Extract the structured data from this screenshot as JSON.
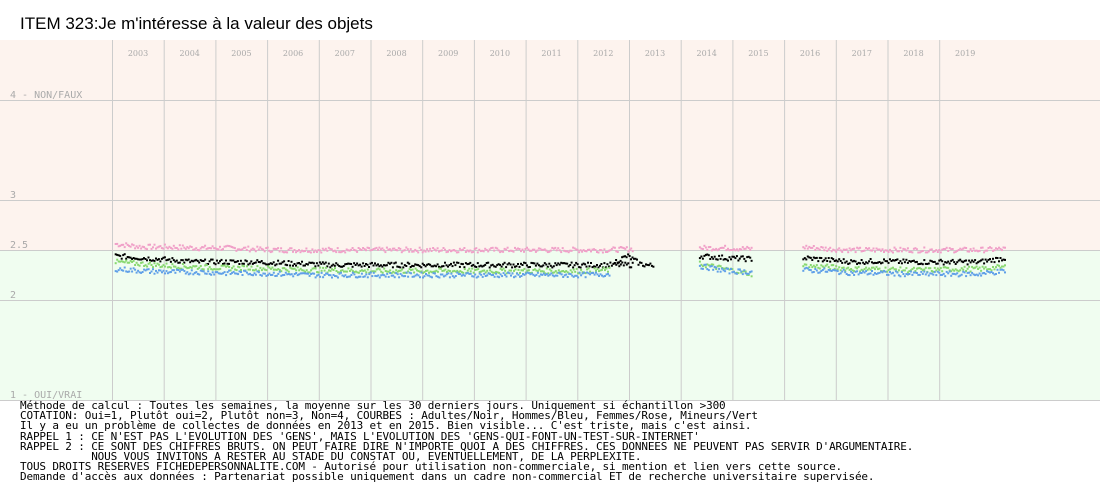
{
  "chart_data": {
    "type": "scatter",
    "title": "ITEM 323:Je m'intéresse à la valeur des objets",
    "years": [
      "2003",
      "2004",
      "2005",
      "2006",
      "2007",
      "2008",
      "2009",
      "2010",
      "2011",
      "2012",
      "2013",
      "2014",
      "2015",
      "2016",
      "2017",
      "2018",
      "2019"
    ],
    "ylim": [
      1,
      4
    ],
    "ytick_labels": [
      {
        "value": 4,
        "label": "4 - NON/FAUX"
      },
      {
        "value": 3,
        "label": "3"
      },
      {
        "value": 2.5,
        "label": "2.5"
      },
      {
        "value": 2,
        "label": "2"
      },
      {
        "value": 1,
        "label": "1 - OUI/VRAI"
      }
    ],
    "bands": [
      {
        "from": 2.5,
        "to": 4,
        "color": "#fdf3ee"
      },
      {
        "from": 1,
        "to": 2.5,
        "color": "#f0fdf0"
      }
    ],
    "grid": true,
    "legend": "none",
    "gaps": [
      "2013",
      "2015"
    ],
    "series": [
      {
        "color": "#f0a0c8",
        "segments": [
          {
            "x_start": 2002.55,
            "x_end": 2012.55,
            "values": [
              2.56,
              2.53,
              2.53,
              2.52,
              2.52,
              2.51,
              2.5,
              2.5,
              2.5,
              2.5,
              2.5,
              2.5,
              2.5,
              2.5,
              2.5,
              2.5,
              2.5,
              2.5,
              2.5,
              2.51
            ]
          },
          {
            "x_start": 2013.85,
            "x_end": 2014.85,
            "values": [
              2.52,
              2.52,
              2.51
            ]
          },
          {
            "x_start": 2015.85,
            "x_end": 2019.75,
            "values": [
              2.53,
              2.51,
              2.5,
              2.5,
              2.5,
              2.5,
              2.5,
              2.5,
              2.51
            ]
          }
        ]
      },
      {
        "color": "#000000",
        "segments": [
          {
            "x_start": 2002.55,
            "x_end": 2012.55,
            "values": [
              2.44,
              2.42,
              2.4,
              2.38,
              2.38,
              2.38,
              2.37,
              2.36,
              2.35,
              2.35,
              2.35,
              2.35,
              2.35,
              2.35,
              2.35,
              2.35,
              2.35,
              2.35,
              2.35,
              2.35
            ]
          },
          {
            "x_start": 2012.2,
            "x_end": 2012.95,
            "values": [
              2.38,
              2.44,
              2.36,
              2.34
            ]
          },
          {
            "x_start": 2013.85,
            "x_end": 2014.85,
            "values": [
              2.44,
              2.42,
              2.41
            ]
          },
          {
            "x_start": 2015.85,
            "x_end": 2019.75,
            "values": [
              2.42,
              2.4,
              2.38,
              2.39,
              2.38,
              2.38,
              2.38,
              2.38,
              2.42
            ]
          }
        ]
      },
      {
        "color": "#88d870",
        "segments": [
          {
            "x_start": 2002.55,
            "x_end": 2012.1,
            "values": [
              2.38,
              2.36,
              2.34,
              2.33,
              2.32,
              2.32,
              2.31,
              2.3,
              2.3,
              2.29,
              2.29,
              2.29,
              2.29,
              2.29,
              2.29,
              2.29,
              2.29,
              2.29,
              2.3
            ]
          },
          {
            "x_start": 2013.85,
            "x_end": 2014.85,
            "values": [
              2.36,
              2.31,
              2.26
            ]
          },
          {
            "x_start": 2015.85,
            "x_end": 2019.75,
            "values": [
              2.34,
              2.33,
              2.31,
              2.31,
              2.3,
              2.3,
              2.31,
              2.31,
              2.33
            ]
          }
        ]
      },
      {
        "color": "#60a0e8",
        "segments": [
          {
            "x_start": 2002.55,
            "x_end": 2012.1,
            "values": [
              2.31,
              2.29,
              2.28,
              2.28,
              2.27,
              2.27,
              2.26,
              2.25,
              2.25,
              2.25,
              2.25,
              2.25,
              2.25,
              2.25,
              2.25,
              2.25,
              2.25,
              2.25,
              2.26
            ]
          },
          {
            "x_start": 2013.85,
            "x_end": 2014.85,
            "values": [
              2.34,
              2.29,
              2.28
            ]
          },
          {
            "x_start": 2015.85,
            "x_end": 2019.75,
            "values": [
              2.3,
              2.29,
              2.27,
              2.27,
              2.26,
              2.26,
              2.26,
              2.26,
              2.29
            ]
          }
        ]
      }
    ]
  },
  "notes": [
    "Méthode de calcul : Toutes les semaines, la moyenne sur les 30 derniers jours. Uniquement si échantillon >300",
    "COTATION: Oui=1, Plutôt oui=2, Plutôt non=3, Non=4, COURBES : Adultes/Noir, Hommes/Bleu, Femmes/Rose, Mineurs/Vert",
    "Il y a eu un problème de collectes de données en 2013 et en 2015. Bien visible... C'est triste, mais c'est ainsi.",
    "RAPPEL 1 : CE N'EST PAS L'EVOLUTION DES 'GENS', MAIS L'EVOLUTION DES 'GENS-QUI-FONT-UN-TEST-SUR-INTERNET'",
    "RAPPEL 2 : CE SONT DES CHIFFRES BRUTS. ON PEUT FAIRE DIRE N'IMPORTE QUOI A DES CHIFFRES. CES DONNEES NE PEUVENT PAS SERVIR D'ARGUMENTAIRE.",
    "           NOUS VOUS INVITONS A RESTER AU STADE DU CONSTAT OU, EVENTUELLEMENT, DE LA PERPLEXITE.",
    "TOUS DROITS RESERVES FICHEDEPERSONNALITE.COM - Autorisé pour utilisation non-commerciale, si mention et lien vers cette source.",
    "Demande d'accès aux données : Partenariat possible uniquement dans un cadre non-commercial ET de recherche universitaire supervisée."
  ]
}
